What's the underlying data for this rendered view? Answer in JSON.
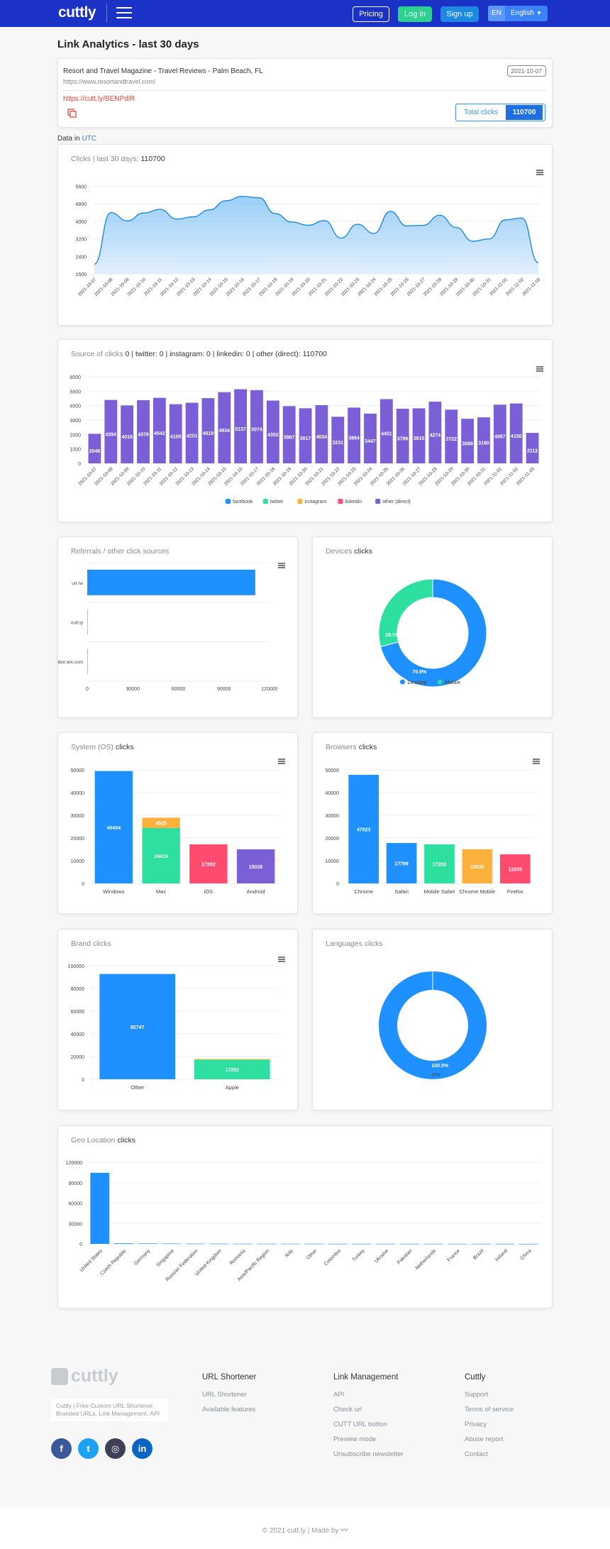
{
  "nav": {
    "logo": "cuttly",
    "pricing": "Pricing",
    "login": "Log in",
    "signup": "Sign up",
    "lang_code": "EN",
    "lang_name": "English"
  },
  "page_title": "Link Analytics - last 30 days",
  "link": {
    "title": "Resort and Travel Magazine - Travel Reviews - Palm Beach, FL",
    "url": "https://www.resortandtravel.com/",
    "short": "https://cutt.ly/BENPdlR",
    "date": "2021-10-07",
    "total_label": "Total clicks",
    "total_value": "110700"
  },
  "data_in": {
    "prefix": "Data in",
    "tz": "UTC"
  },
  "clicks_card": {
    "title": "Clicks | last 30 days:",
    "value": "110700"
  },
  "source_card": {
    "title": "Source of clicks",
    "summary": "0 | twitter: 0 | instagram: 0 | linkedin: 0 | other (direct): 110700"
  },
  "referrals_card": {
    "title": "Referrals / other click sources"
  },
  "devices_card": {
    "title": "Devices",
    "suffix": "clicks"
  },
  "os_card": {
    "title": "System (OS)",
    "suffix": "clicks"
  },
  "browsers_card": {
    "title": "Browsers",
    "suffix": "clicks"
  },
  "brand_card": {
    "title": "Brand clicks"
  },
  "languages_card": {
    "title": "Languages clicks"
  },
  "geo_card": {
    "title": "Geo Location",
    "suffix": "clicks"
  },
  "chart_data": [
    {
      "id": "clicks",
      "type": "area",
      "dates": [
        "2021-10-07",
        "2021-10-08",
        "2021-10-09",
        "2021-10-10",
        "2021-10-11",
        "2021-10-12",
        "2021-10-13",
        "2021-10-14",
        "2021-10-15",
        "2021-10-16",
        "2021-10-17",
        "2021-10-18",
        "2021-10-19",
        "2021-10-20",
        "2021-10-21",
        "2021-10-22",
        "2021-10-23",
        "2021-10-24",
        "2021-10-25",
        "2021-10-26",
        "2021-10-27",
        "2021-10-28",
        "2021-10-29",
        "2021-10-30",
        "2021-10-31",
        "2021-11-01",
        "2021-11-02",
        "2021-11-03"
      ],
      "values": [
        2048,
        4394,
        4018,
        4378,
        4542,
        4100,
        4201,
        4519,
        4934,
        5137,
        5074,
        4352,
        3967,
        3817,
        4034,
        3231,
        3864,
        3447,
        4451,
        3786,
        3815,
        4274,
        3722,
        3088,
        3190,
        4067,
        4150,
        2112
      ],
      "yticks": [
        1600,
        2400,
        3200,
        4000,
        4800,
        5600
      ],
      "ylim": [
        1600,
        6000
      ]
    },
    {
      "id": "source",
      "type": "bar",
      "values": [
        2048,
        4394,
        4018,
        4378,
        4542,
        4100,
        4201,
        4519,
        4934,
        5137,
        5074,
        4352,
        3967,
        3817,
        4034,
        3231,
        3864,
        3447,
        4451,
        3786,
        3815,
        4274,
        3722,
        3088,
        3190,
        4067,
        4150,
        2112
      ],
      "yticks": [
        0,
        1000,
        2000,
        3000,
        4000,
        5000,
        6000
      ],
      "ylim": [
        0,
        6000
      ],
      "legend": [
        {
          "name": "facebook",
          "color": "#1e90ff"
        },
        {
          "name": "twitter",
          "color": "#2ee0a0"
        },
        {
          "name": "instagram",
          "color": "#fbb13c"
        },
        {
          "name": "linkedin",
          "color": "#ff4b6e"
        },
        {
          "name": "other (direct)",
          "color": "#7a5fd6"
        }
      ]
    },
    {
      "id": "referrals",
      "type": "bar",
      "orientation": "horizontal",
      "categories": [
        "url.rw",
        "cutt.ly",
        "editor.wix.com"
      ],
      "values": [
        110600,
        60,
        40
      ],
      "xticks": [
        0,
        30000,
        60000,
        90000,
        120000
      ],
      "xlim": [
        0,
        120000
      ]
    },
    {
      "id": "devices",
      "type": "pie",
      "labels": [
        "Desktop",
        "Mobile"
      ],
      "percents": [
        70.9,
        29.1
      ],
      "percent_labels": [
        "70.9%",
        "29.1%"
      ],
      "colors": [
        "#1e90ff",
        "#2ee0a0"
      ]
    },
    {
      "id": "os",
      "type": "bar",
      "stacked": true,
      "categories": [
        "Windows",
        "Mac",
        "iOS",
        "Android"
      ],
      "segments": [
        [
          {
            "v": 49494,
            "label": "49494",
            "color": "#1e90ff"
          }
        ],
        [
          {
            "v": 24419,
            "label": "24419",
            "color": "#2ee0a0"
          },
          {
            "v": 4525,
            "label": "4525",
            "color": "#fbb13c"
          }
        ],
        [
          {
            "v": 17202,
            "label": "17202",
            "color": "#ff4b6e"
          }
        ],
        [
          {
            "v": 15026,
            "label": "15026",
            "color": "#7a5fd6"
          }
        ]
      ],
      "yticks": [
        0,
        10000,
        20000,
        30000,
        40000,
        50000
      ],
      "ylim": [
        0,
        50000
      ]
    },
    {
      "id": "browsers",
      "type": "bar",
      "categories": [
        "Chrome",
        "Safari",
        "Mobile Safari",
        "Chrome Mobile",
        "Firefox"
      ],
      "segments": [
        [
          {
            "v": 47823,
            "label": "47823",
            "color": "#1e90ff"
          }
        ],
        [
          {
            "v": 17799,
            "label": "17799",
            "color": "#1e90ff"
          }
        ],
        [
          {
            "v": 17202,
            "label": "17202",
            "color": "#2ee0a0"
          }
        ],
        [
          {
            "v": 15026,
            "label": "15026",
            "color": "#fbb13c"
          }
        ],
        [
          {
            "v": 12805,
            "label": "12805",
            "color": "#ff4b6e"
          }
        ]
      ],
      "yticks": [
        0,
        10000,
        20000,
        30000,
        40000,
        50000
      ],
      "ylim": [
        0,
        50000
      ]
    },
    {
      "id": "brand",
      "type": "bar",
      "categories": [
        "Other",
        "Apple"
      ],
      "segments": [
        [
          {
            "v": 92747,
            "label": "92747",
            "color": "#1e90ff"
          }
        ],
        [
          {
            "v": 17202,
            "label": "17202",
            "color": "#2ee0a0"
          },
          {
            "v": 600,
            "label": "",
            "color": "#fbb13c"
          }
        ]
      ],
      "yticks": [
        0,
        20000,
        40000,
        60000,
        80000,
        100000
      ],
      "ylim": [
        0,
        100000
      ]
    },
    {
      "id": "languages",
      "type": "pie",
      "labels": [
        "EN"
      ],
      "percents": [
        100
      ],
      "percent_labels": [
        "100.0%"
      ],
      "colors": [
        "#1e90ff"
      ]
    },
    {
      "id": "geo",
      "type": "bar",
      "categories": [
        "United States",
        "Czech Republic",
        "Germany",
        "Singapore",
        "Russian Federation",
        "United Kingdom",
        "Romania",
        "Asia/Pacific Region",
        "Italy",
        "Other",
        "Colombia",
        "Turkey",
        "Ukraine",
        "Pakistan",
        "Netherlands",
        "France",
        "Brazil",
        "Ireland",
        "China"
      ],
      "values": [
        104500,
        900,
        700,
        500,
        400,
        350,
        300,
        250,
        220,
        200,
        100,
        90,
        80,
        70,
        60,
        50,
        40,
        30,
        20
      ],
      "yticks": [
        0,
        30000,
        60000,
        90000,
        120000
      ],
      "ylim": [
        0,
        120000
      ],
      "color": "#1e90ff"
    }
  ],
  "footer": {
    "logo": "cuttly",
    "desc": "Cuttly | Free Custom URL Shortener, Branded URLs, Link Management, API",
    "socials": [
      {
        "label": "f",
        "color": "#3b5998"
      },
      {
        "label": "t",
        "color": "#1da1f2"
      },
      {
        "label": "◎",
        "color": "#3f3f55"
      },
      {
        "label": "in",
        "color": "#0a66c2"
      }
    ],
    "col1_title": "URL Shortener",
    "col1_links": [
      "URL Shortener",
      "Available features"
    ],
    "col2_title": "Link Management",
    "col2_links": [
      "API",
      "Check url",
      "CUTT URL button",
      "Preview mode",
      "Unsubscribe newsletter"
    ],
    "col3_title": "Cuttly",
    "col3_links": [
      "Support",
      "Terms of service",
      "Privacy",
      "Abuse report",
      "Contact"
    ],
    "copyright": "© 2021 cutt.ly | Made by"
  }
}
